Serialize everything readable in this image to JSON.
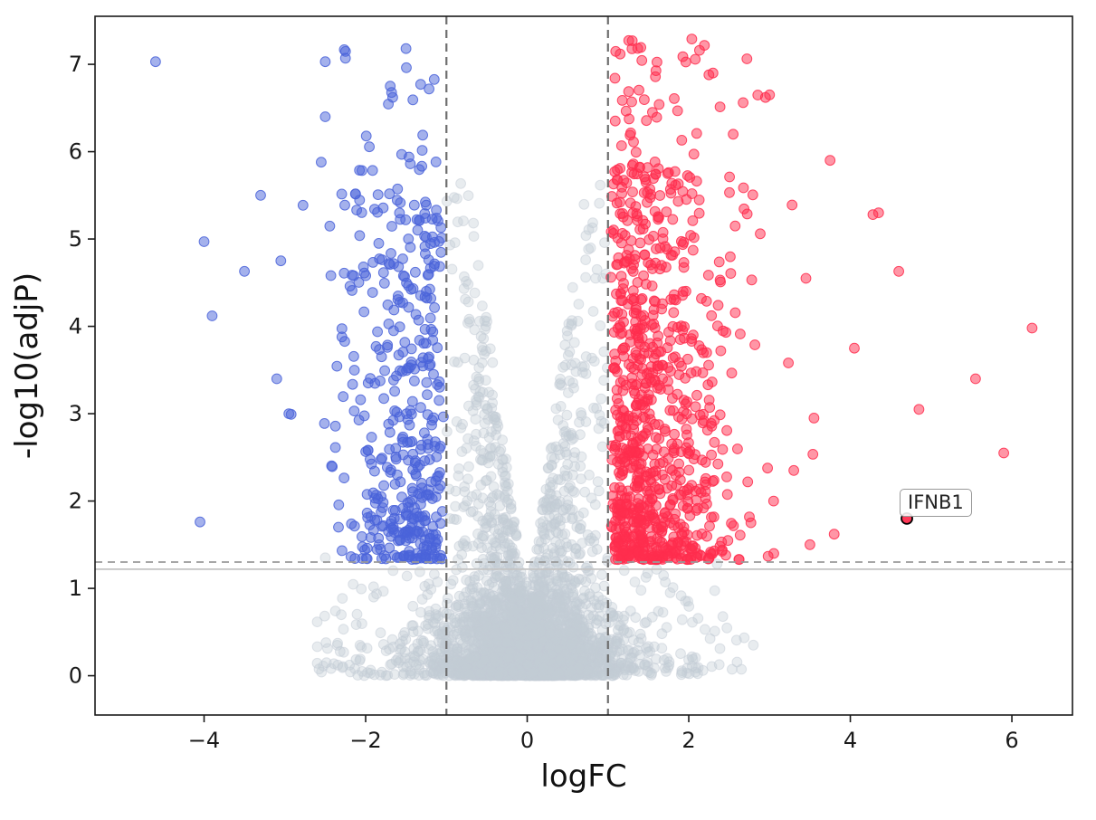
{
  "chart_data": {
    "type": "scatter",
    "subtype": "volcano-plot",
    "title": "",
    "xlabel": "logFC",
    "ylabel": "-log10(adjP)",
    "xlim": [
      -5.35,
      6.75
    ],
    "ylim": [
      -0.45,
      7.55
    ],
    "grid": false,
    "legend": "none",
    "xticks": [
      {
        "v": -4,
        "label": "−4"
      },
      {
        "v": -2,
        "label": "−2"
      },
      {
        "v": 0,
        "label": "0"
      },
      {
        "v": 2,
        "label": "2"
      },
      {
        "v": 4,
        "label": "4"
      },
      {
        "v": 6,
        "label": "6"
      }
    ],
    "yticks": [
      {
        "v": 0,
        "label": "0"
      },
      {
        "v": 1,
        "label": "1"
      },
      {
        "v": 2,
        "label": "2"
      },
      {
        "v": 3,
        "label": "3"
      },
      {
        "v": 4,
        "label": "4"
      },
      {
        "v": 5,
        "label": "5"
      },
      {
        "v": 6,
        "label": "6"
      },
      {
        "v": 7,
        "label": "7"
      }
    ],
    "lines": [
      {
        "type": "v",
        "x": -1,
        "style": "dashed",
        "color": "#6e6e6e",
        "width": 2.2,
        "dash": "9,6"
      },
      {
        "type": "v",
        "x": 1,
        "style": "dashed",
        "color": "#6e6e6e",
        "width": 2.2,
        "dash": "9,6"
      },
      {
        "type": "h",
        "y": 1.301,
        "style": "dashed",
        "color": "#999999",
        "width": 1.8,
        "dash": "8,6"
      },
      {
        "type": "h",
        "y": 1.22,
        "style": "solid",
        "color": "#c4c4c4",
        "width": 1.8,
        "dash": ""
      }
    ],
    "thresholds": {
      "logFC": [
        -1,
        1
      ],
      "minus_log10_adjP": 1.301
    },
    "points": {
      "seed": 20240613,
      "marker_radius": 5.4,
      "highlight_color": "#ff2d4e",
      "series": [
        {
          "name": "nonsignificant",
          "kind": "ns",
          "color": "#c3ccd6",
          "fill_opacity": 0.38,
          "stroke_opacity": 0.5,
          "count": 3600,
          "extras": [
            [
              -2.5,
              1.35
            ],
            [
              2.35,
              1.28
            ],
            [
              2.8,
              0.35
            ],
            [
              -1.9,
              0.9
            ]
          ]
        },
        {
          "name": "down-regulated",
          "kind": "down",
          "color": "#4a63d9",
          "fill_opacity": 0.5,
          "stroke_opacity": 0.85,
          "count": 430,
          "extras": [
            [
              -4.6,
              7.03
            ],
            [
              -4.0,
              4.97
            ],
            [
              -3.9,
              4.12
            ],
            [
              -4.05,
              1.76
            ],
            [
              -3.3,
              5.5
            ],
            [
              -3.5,
              4.63
            ],
            [
              -2.95,
              3.0
            ],
            [
              -3.1,
              3.4
            ],
            [
              -2.5,
              7.03
            ],
            [
              -2.25,
              7.07
            ],
            [
              -1.5,
              7.18
            ],
            [
              -2.55,
              5.88
            ],
            [
              -2.5,
              6.4
            ],
            [
              -3.05,
              4.75
            ]
          ]
        },
        {
          "name": "up-regulated",
          "kind": "up",
          "color": "#ff2d4e",
          "fill_opacity": 0.5,
          "stroke_opacity": 0.85,
          "count": 880,
          "extras": [
            [
              6.25,
              3.98
            ],
            [
              5.9,
              2.55
            ],
            [
              5.55,
              3.4
            ],
            [
              4.85,
              3.05
            ],
            [
              4.6,
              4.63
            ],
            [
              4.35,
              5.3
            ],
            [
              4.28,
              5.28
            ],
            [
              3.75,
              5.9
            ],
            [
              3.0,
              6.65
            ],
            [
              2.3,
              6.9
            ],
            [
              2.55,
              6.2
            ],
            [
              3.45,
              4.55
            ],
            [
              4.05,
              3.75
            ],
            [
              3.55,
              2.95
            ],
            [
              3.8,
              1.62
            ],
            [
              3.5,
              1.5
            ],
            [
              3.05,
              2.0
            ],
            [
              3.3,
              2.35
            ],
            [
              1.3,
              7.27
            ],
            [
              2.95,
              6.62
            ],
            [
              2.25,
              6.88
            ],
            [
              1.55,
              6.45
            ]
          ]
        }
      ]
    },
    "annotation": {
      "label": "IFNB1",
      "x": 4.7,
      "y": 1.8
    }
  }
}
